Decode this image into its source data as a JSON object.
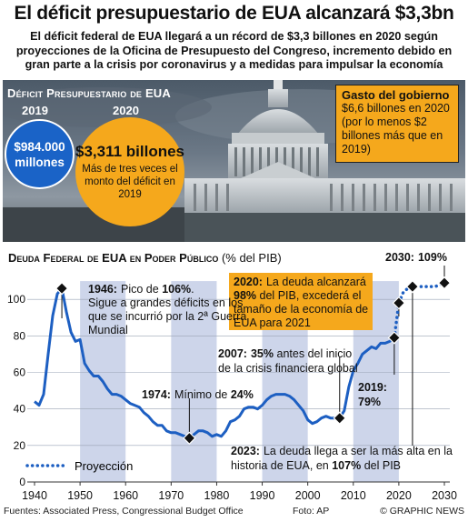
{
  "header": {
    "title": "El déficit presupuestario de EUA alcanzará $3,3bn",
    "subtitle": "El déficit federal de EUA llegará a un récord de $3,3 billones en 2020 según proyecciones de la Oficina de Presupuesto del Congreso, incremento debido en gran parte a la crisis por coronavirus y a medidas para impulsar la economía"
  },
  "deficit": {
    "heading": "Déficit Presupuestario de EUA",
    "year_2019": "2019",
    "year_2020": "2020",
    "value_2019": "$984.000 millones",
    "value_2020": "$3,311 billones",
    "note_2020": "Más de tres veces el monto del déficit en 2019"
  },
  "spending": {
    "title": "Gasto del gobierno",
    "body": "$6,6 billones en 2020 (por lo menos $2 billones más que en 2019)"
  },
  "chart_title": {
    "prefix": "Deuda Federal de EUA en Poder Público",
    "unit": "(% del PIB)"
  },
  "chart_data": {
    "type": "line",
    "xlim": [
      1940,
      2030
    ],
    "ylim": [
      0,
      120
    ],
    "x_ticks": [
      1940,
      1950,
      1960,
      1970,
      1980,
      1990,
      2000,
      2010,
      2020,
      2030
    ],
    "y_ticks": [
      0,
      20,
      40,
      60,
      80,
      100
    ],
    "grid": true,
    "legend": "bottom-left",
    "historical": {
      "x": [
        1940,
        1941,
        1942,
        1943,
        1944,
        1945,
        1946,
        1947,
        1948,
        1949,
        1950,
        1951,
        1952,
        1953,
        1954,
        1955,
        1956,
        1957,
        1958,
        1959,
        1960,
        1961,
        1962,
        1963,
        1964,
        1965,
        1966,
        1967,
        1968,
        1969,
        1970,
        1971,
        1972,
        1973,
        1974,
        1975,
        1976,
        1977,
        1978,
        1979,
        1980,
        1981,
        1982,
        1983,
        1984,
        1985,
        1986,
        1987,
        1988,
        1989,
        1990,
        1991,
        1992,
        1993,
        1994,
        1995,
        1996,
        1997,
        1998,
        1999,
        2000,
        2001,
        2002,
        2003,
        2004,
        2005,
        2006,
        2007,
        2008,
        2009,
        2010,
        2011,
        2012,
        2013,
        2014,
        2015,
        2016,
        2017,
        2018,
        2019
      ],
      "y": [
        44,
        42,
        48,
        70,
        91,
        103,
        106,
        93,
        82,
        77,
        78,
        65,
        61,
        58,
        58,
        55,
        51,
        48,
        48,
        47,
        45,
        43,
        42,
        41,
        38,
        36,
        33,
        31,
        31,
        28,
        27,
        27,
        26,
        25,
        24,
        26,
        28,
        28,
        27,
        25,
        26,
        25,
        28,
        33,
        34,
        36,
        40,
        41,
        41,
        40,
        42,
        45,
        47,
        48,
        48,
        48,
        47,
        45,
        42,
        39,
        34,
        32,
        33,
        35,
        36,
        35,
        35,
        35,
        39,
        52,
        61,
        65,
        70,
        72,
        74,
        73,
        76,
        76,
        77,
        79
      ]
    },
    "projection": {
      "name": "Proyección",
      "x": [
        2019,
        2020,
        2021,
        2022,
        2023,
        2024,
        2025,
        2026,
        2027,
        2028,
        2029,
        2030
      ],
      "y": [
        79,
        98,
        104,
        106,
        107,
        107,
        107,
        107,
        107,
        107,
        108,
        109
      ]
    },
    "annotations": [
      {
        "year": "1946:",
        "text_parts": [
          [
            "Pico de ",
            false
          ],
          [
            "106%",
            true
          ],
          [
            ". Sigue a grandes déficits en los que se incurrió por la 2ª Guerra Mundial",
            false
          ]
        ]
      },
      {
        "year": "1974:",
        "text_parts": [
          [
            "Mínimo de ",
            false
          ],
          [
            "24%",
            true
          ]
        ]
      },
      {
        "year": "2007:",
        "text_parts": [
          [
            "35%",
            true
          ],
          [
            " antes del inicio de la crisis financiera global",
            false
          ]
        ]
      },
      {
        "year": "2019:",
        "text_parts": [
          [
            "79%",
            true
          ]
        ]
      },
      {
        "year": "2020:",
        "text_parts": [
          [
            "La deuda alcanzará ",
            false
          ],
          [
            "98%",
            true
          ],
          [
            " del PIB, excederá el tamaño de la economía de EUA para 2021",
            false
          ]
        ]
      },
      {
        "year": "2023:",
        "text_parts": [
          [
            "La deuda llega a ser la más alta en la historia de EUA, en ",
            false
          ],
          [
            "107%",
            true
          ],
          [
            " del PIB",
            false
          ]
        ]
      },
      {
        "year": "2030:",
        "text_parts": [
          [
            "109%",
            true
          ]
        ]
      }
    ]
  },
  "footer": {
    "sources": "Fuentes: Associated Press, Congressional Budget Office",
    "photo": "Foto: AP",
    "credit": "© GRAPHIC NEWS"
  },
  "colors": {
    "orange": "#f5a81c",
    "blue": "#1a63c7",
    "band": "#cdd5ea",
    "line": "#1d5fc2"
  }
}
